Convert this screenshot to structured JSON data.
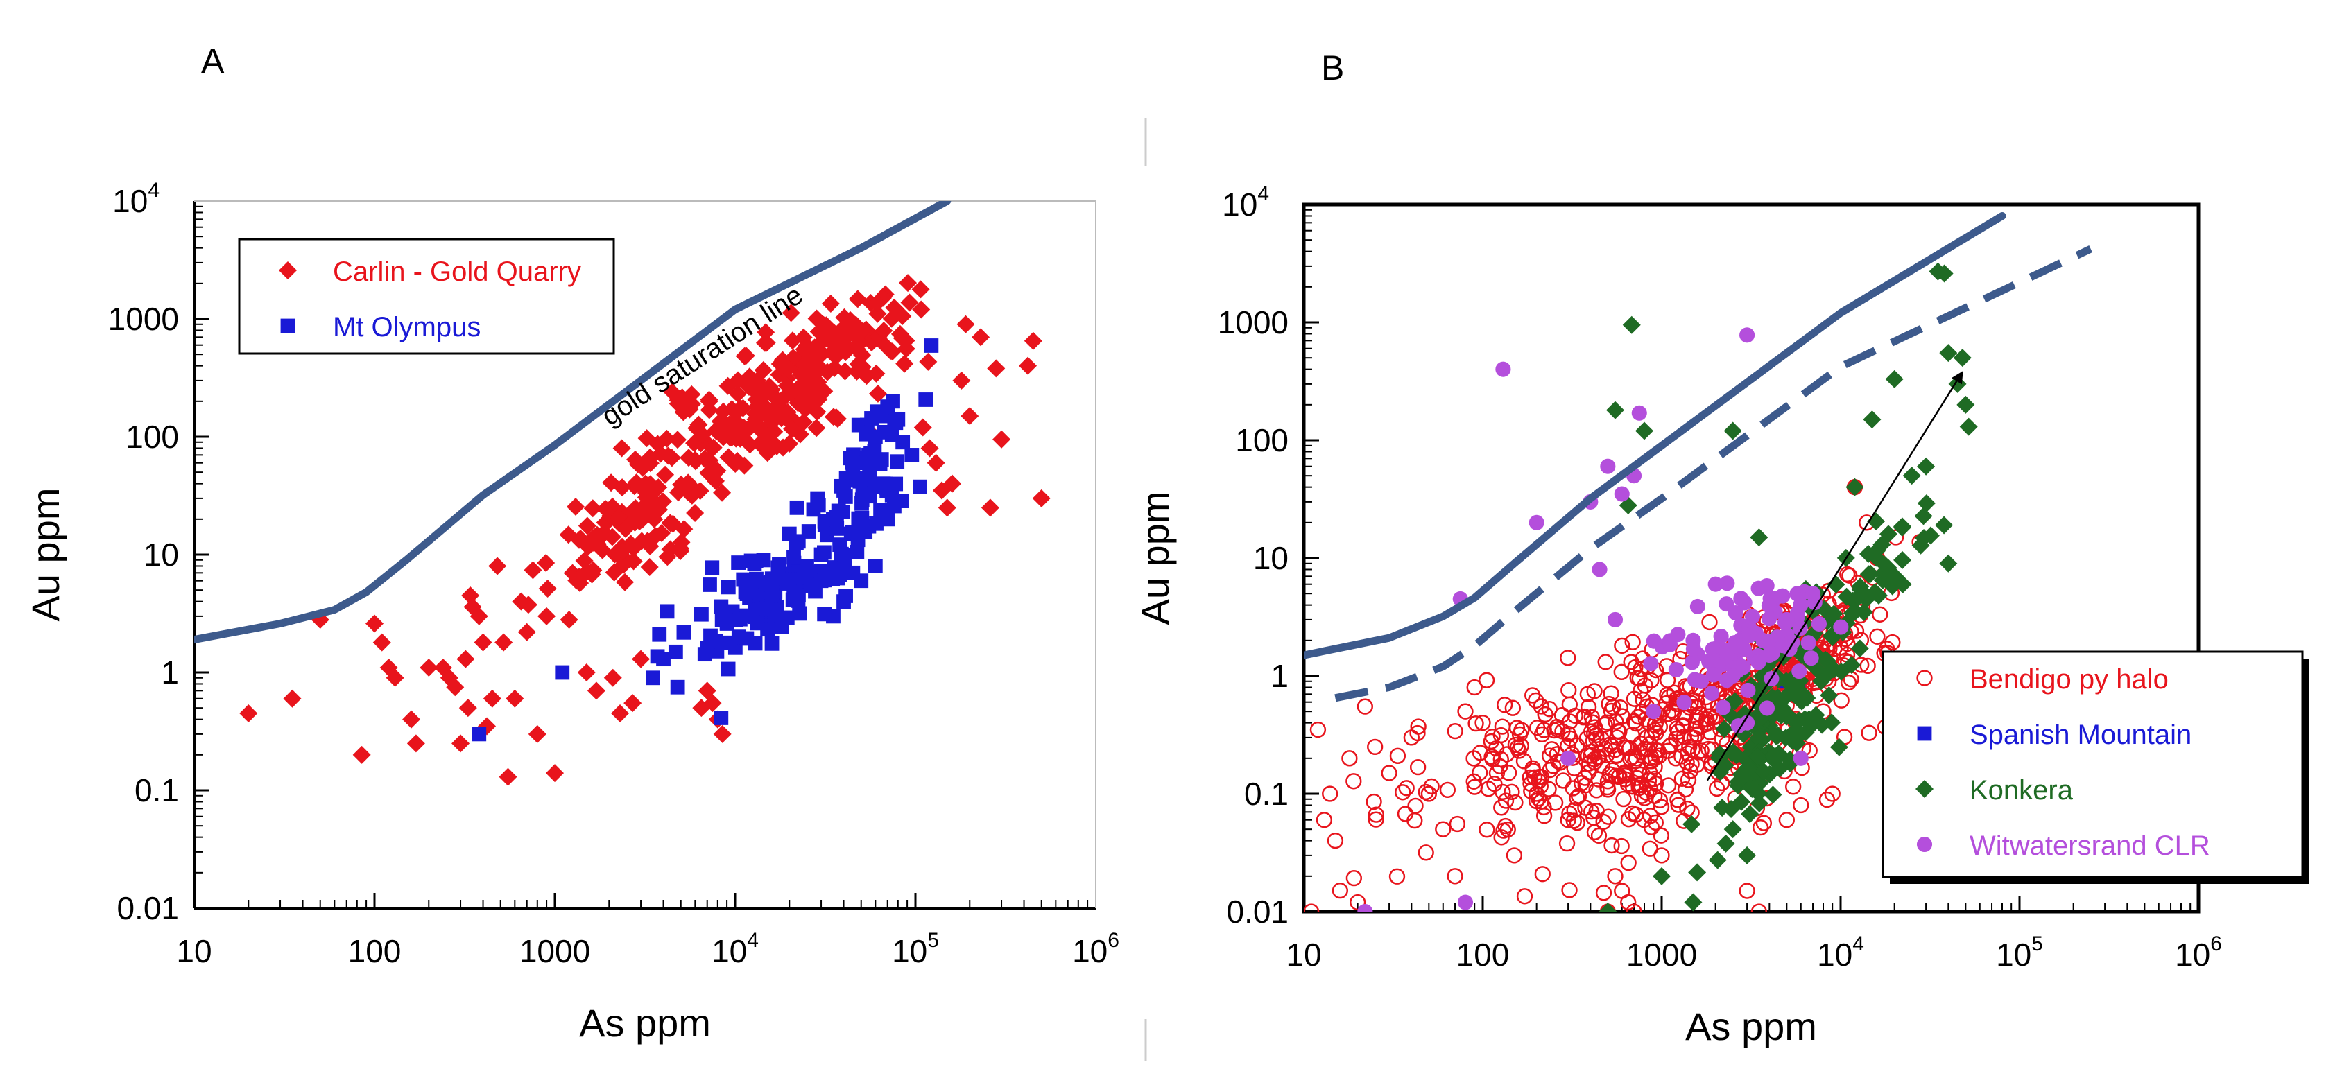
{
  "chart_data": [
    {
      "panel_label": "A",
      "type": "scatter",
      "x_scale": "log",
      "y_scale": "log",
      "xlim": [
        10,
        1000000
      ],
      "ylim": [
        0.01,
        10000
      ],
      "xlabel": "As ppm",
      "ylabel": "Au ppm",
      "x_ticks": [
        {
          "value": 10,
          "label": "10",
          "exp": ""
        },
        {
          "value": 100,
          "label": "100",
          "exp": ""
        },
        {
          "value": 1000,
          "label": "1000",
          "exp": ""
        },
        {
          "value": 10000,
          "label": "10",
          "exp": "4"
        },
        {
          "value": 100000,
          "label": "10",
          "exp": "5"
        },
        {
          "value": 1000000,
          "label": "10",
          "exp": "6"
        }
      ],
      "y_ticks": [
        {
          "value": 0.01,
          "label": "0.01",
          "exp": ""
        },
        {
          "value": 0.1,
          "label": "0.1",
          "exp": ""
        },
        {
          "value": 1,
          "label": "1",
          "exp": ""
        },
        {
          "value": 10,
          "label": "10",
          "exp": ""
        },
        {
          "value": 100,
          "label": "100",
          "exp": ""
        },
        {
          "value": 1000,
          "label": "1000",
          "exp": ""
        },
        {
          "value": 10000,
          "label": "10",
          "exp": "4"
        }
      ],
      "legend": {
        "placement": "top-left",
        "entries": [
          "Carlin - Gold Quarry",
          "Mt Olympus"
        ]
      },
      "lines": [
        {
          "name": "gold saturation line",
          "style": "solid",
          "color": "#3d5a8c",
          "points": [
            [
              10,
              1.9
            ],
            [
              30,
              2.6
            ],
            [
              60,
              3.4
            ],
            [
              90,
              4.8
            ],
            [
              150,
              9
            ],
            [
              400,
              32
            ],
            [
              1000,
              85
            ],
            [
              10000,
              1200
            ],
            [
              50000,
              4000
            ],
            [
              150000,
              10000
            ]
          ]
        }
      ],
      "annotation": {
        "text": "gold saturation line",
        "x": 7000,
        "y": 420
      },
      "series": [
        {
          "name": "Carlin - Gold Quarry",
          "marker": "diamond",
          "color": "#e8141c",
          "n_random": 360,
          "points": [
            [
              20,
              0.45
            ],
            [
              35,
              0.6
            ],
            [
              50,
              2.8
            ],
            [
              85,
              0.2
            ],
            [
              100,
              2.6
            ],
            [
              110,
              1.8
            ],
            [
              120,
              1.1
            ],
            [
              130,
              0.9
            ],
            [
              160,
              0.4
            ],
            [
              170,
              0.25
            ],
            [
              200,
              1.1
            ],
            [
              240,
              1.1
            ],
            [
              260,
              0.9
            ],
            [
              280,
              0.75
            ],
            [
              300,
              0.25
            ],
            [
              320,
              1.3
            ],
            [
              330,
              0.5
            ],
            [
              340,
              4.5
            ],
            [
              350,
              3.6
            ],
            [
              380,
              3
            ],
            [
              400,
              1.8
            ],
            [
              420,
              0.35
            ],
            [
              450,
              0.6
            ],
            [
              480,
              8
            ],
            [
              520,
              1.8
            ],
            [
              550,
              0.13
            ],
            [
              600,
              0.6
            ],
            [
              650,
              4
            ],
            [
              700,
              2.2
            ],
            [
              800,
              0.3
            ],
            [
              900,
              3
            ],
            [
              1000,
              0.14
            ],
            [
              1200,
              2.8
            ],
            [
              1500,
              1
            ],
            [
              1700,
              0.7
            ],
            [
              2100,
              0.9
            ],
            [
              2300,
              0.45
            ],
            [
              2700,
              0.55
            ],
            [
              3000,
              1.3
            ],
            [
              6500,
              0.5
            ],
            [
              7000,
              0.7
            ],
            [
              7500,
              0.55
            ],
            [
              8000,
              0.4
            ],
            [
              8500,
              0.3
            ],
            [
              110000,
              120
            ],
            [
              120000,
              80
            ],
            [
              130000,
              60
            ],
            [
              140000,
              35
            ],
            [
              150000,
              25
            ],
            [
              160000,
              40
            ],
            [
              190000,
              900
            ],
            [
              230000,
              700
            ],
            [
              260000,
              25
            ],
            [
              280000,
              380
            ],
            [
              300000,
              95
            ],
            [
              420000,
              400
            ],
            [
              450000,
              650
            ],
            [
              500000,
              30
            ],
            [
              180000,
              300
            ],
            [
              200000,
              150
            ]
          ]
        },
        {
          "name": "Mt Olympus",
          "marker": "square",
          "color": "#1a1ad6",
          "n_random": 180,
          "points": [
            [
              380,
              0.3
            ],
            [
              1100,
              1
            ],
            [
              3500,
              0.9
            ],
            [
              4000,
              1.3
            ],
            [
              3800,
              2.1
            ],
            [
              4200,
              3.3
            ],
            [
              4800,
              0.75
            ],
            [
              7000,
              1.6
            ],
            [
              9000,
              2.6
            ],
            [
              12000,
              3
            ],
            [
              15000,
              3.5
            ],
            [
              16000,
              4.5
            ],
            [
              20000,
              15
            ],
            [
              22000,
              25
            ],
            [
              25000,
              8
            ],
            [
              30000,
              10
            ],
            [
              35000,
              20
            ],
            [
              40000,
              35
            ],
            [
              45000,
              50
            ],
            [
              50000,
              60
            ],
            [
              55000,
              70
            ],
            [
              60000,
              100
            ],
            [
              65000,
              150
            ],
            [
              70000,
              180
            ],
            [
              75000,
              200
            ],
            [
              80000,
              140
            ],
            [
              85000,
              90
            ],
            [
              70000,
              20
            ],
            [
              60000,
              8
            ],
            [
              50000,
              6
            ],
            [
              45000,
              7
            ],
            [
              40000,
              4
            ],
            [
              35000,
              3
            ],
            [
              30000,
              6
            ]
          ]
        }
      ]
    },
    {
      "panel_label": "B",
      "type": "scatter",
      "x_scale": "log",
      "y_scale": "log",
      "xlim": [
        10,
        1000000
      ],
      "ylim": [
        0.01,
        10000
      ],
      "xlabel": "As ppm",
      "ylabel": "Au ppm",
      "x_ticks": [
        {
          "value": 10,
          "label": "10",
          "exp": ""
        },
        {
          "value": 100,
          "label": "100",
          "exp": ""
        },
        {
          "value": 1000,
          "label": "1000",
          "exp": ""
        },
        {
          "value": 10000,
          "label": "10",
          "exp": "4"
        },
        {
          "value": 100000,
          "label": "10",
          "exp": "5"
        },
        {
          "value": 1000000,
          "label": "10",
          "exp": "6"
        }
      ],
      "y_ticks": [
        {
          "value": 0.01,
          "label": "0.01",
          "exp": ""
        },
        {
          "value": 0.1,
          "label": "0.1",
          "exp": ""
        },
        {
          "value": 1,
          "label": "1",
          "exp": ""
        },
        {
          "value": 10,
          "label": "10",
          "exp": ""
        },
        {
          "value": 100,
          "label": "100",
          "exp": ""
        },
        {
          "value": 1000,
          "label": "1000",
          "exp": ""
        },
        {
          "value": 10000,
          "label": "10",
          "exp": "4"
        }
      ],
      "legend": {
        "placement": "bottom-right",
        "entries": [
          "Bendigo py halo",
          "Spanish Mountain",
          "Konkera",
          "Witwatersrand CLR"
        ]
      },
      "lines": [
        {
          "style": "solid",
          "color": "#3d5a8c",
          "points": [
            [
              10,
              1.5
            ],
            [
              30,
              2.1
            ],
            [
              60,
              3.2
            ],
            [
              90,
              4.6
            ],
            [
              150,
              9
            ],
            [
              400,
              32
            ],
            [
              1000,
              90
            ],
            [
              10000,
              1200
            ],
            [
              80000,
              8000
            ]
          ]
        },
        {
          "style": "dashed",
          "color": "#3d5a8c",
          "points": [
            [
              15,
              0.65
            ],
            [
              30,
              0.8
            ],
            [
              60,
              1.2
            ],
            [
              90,
              1.8
            ],
            [
              150,
              3.5
            ],
            [
              400,
              12
            ],
            [
              1000,
              32
            ],
            [
              10000,
              420
            ],
            [
              250000,
              4200
            ]
          ]
        }
      ],
      "arrow": {
        "from": [
          1800,
          0.13
        ],
        "to": [
          48000,
          380
        ]
      },
      "series": [
        {
          "name": "Bendigo py halo",
          "marker": "open-circle",
          "color": "#e8141c",
          "n_random": 700,
          "points": [
            [
              11,
              0.01
            ],
            [
              12,
              0.35
            ],
            [
              13,
              0.06
            ],
            [
              14,
              0.1
            ],
            [
              15,
              0.04
            ],
            [
              18,
              0.2
            ],
            [
              20,
              0.012
            ],
            [
              22,
              0.55
            ],
            [
              25,
              0.25
            ],
            [
              30,
              0.15
            ],
            [
              40,
              0.3
            ],
            [
              50,
              0.1
            ],
            [
              60,
              0.05
            ],
            [
              70,
              0.02
            ],
            [
              80,
              0.5
            ],
            [
              90,
              0.8
            ],
            [
              100,
              0.4
            ],
            [
              120,
              0.15
            ],
            [
              150,
              0.03
            ],
            [
              200,
              0.1
            ],
            [
              300,
              0.06
            ],
            [
              500,
              0.01
            ],
            [
              550,
              0.02
            ],
            [
              600,
              0.015
            ],
            [
              650,
              0.012
            ],
            [
              700,
              0.01
            ],
            [
              1000,
              0.03
            ],
            [
              1200,
              0.2
            ],
            [
              1500,
              1.5
            ],
            [
              2000,
              0.8
            ],
            [
              2500,
              0.4
            ],
            [
              3000,
              0.015
            ],
            [
              3500,
              0.01
            ],
            [
              5000,
              0.06
            ],
            [
              6000,
              0.08
            ],
            [
              8000,
              0.5
            ],
            [
              9000,
              0.1
            ],
            [
              12000,
              40
            ],
            [
              14000,
              20
            ],
            [
              16000,
              10
            ]
          ]
        },
        {
          "name": "Spanish Mountain",
          "marker": "square",
          "color": "#1a1ad6",
          "n_random": 0,
          "points": [
            [
              5000,
              0.9
            ],
            [
              5800,
              0.75
            ]
          ]
        },
        {
          "name": "Konkera",
          "marker": "diamond",
          "color": "#1f6b24",
          "n_random": 210,
          "points": [
            [
              500,
              0.01
            ],
            [
              550,
              180
            ],
            [
              650,
              28
            ],
            [
              680,
              950
            ],
            [
              800,
              120
            ],
            [
              1000,
              0.02
            ],
            [
              1500,
              0.012
            ],
            [
              2500,
              120
            ],
            [
              2500,
              0.05
            ],
            [
              3000,
              0.03
            ],
            [
              3500,
              15
            ],
            [
              35000,
              2700
            ],
            [
              38000,
              2600
            ],
            [
              40000,
              550
            ],
            [
              45000,
              300
            ],
            [
              48000,
              500
            ],
            [
              50000,
              200
            ],
            [
              52000,
              130
            ],
            [
              40000,
              9
            ],
            [
              30000,
              60
            ],
            [
              25000,
              50
            ],
            [
              20000,
              330
            ],
            [
              15000,
              150
            ],
            [
              12000,
              40
            ]
          ]
        },
        {
          "name": "Witwatersrand CLR",
          "marker": "circle",
          "color": "#b44fdc",
          "n_random": 90,
          "points": [
            [
              22,
              0.01
            ],
            [
              75,
              4.5
            ],
            [
              80,
              0.012
            ],
            [
              130,
              400
            ],
            [
              200,
              20
            ],
            [
              300,
              0.2
            ],
            [
              400,
              30
            ],
            [
              450,
              8
            ],
            [
              500,
              60
            ],
            [
              550,
              3
            ],
            [
              600,
              35
            ],
            [
              700,
              50
            ],
            [
              750,
              170
            ],
            [
              3000,
              780
            ],
            [
              900,
              0.5
            ],
            [
              1500,
              2
            ],
            [
              2000,
              6
            ],
            [
              2500,
              1
            ],
            [
              3000,
              0.4
            ],
            [
              4000,
              1.5
            ],
            [
              5000,
              3
            ],
            [
              6000,
              0.2
            ],
            [
              7000,
              5
            ]
          ]
        }
      ]
    }
  ]
}
